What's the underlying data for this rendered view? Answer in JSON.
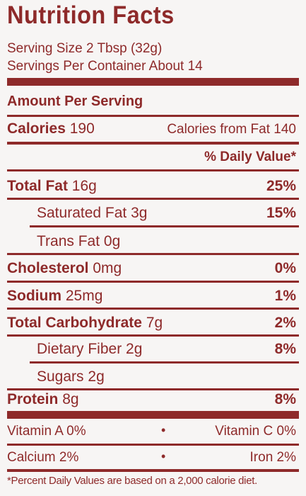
{
  "title": "Nutrition Facts",
  "serving_size": "Serving Size 2 Tbsp (32g)",
  "servings_per_container": "Servings Per Container About 14",
  "amount_per_serving": "Amount Per Serving",
  "calories": {
    "label": "Calories",
    "value": "190",
    "from_fat": "Calories from Fat 140"
  },
  "daily_value_header": "% Daily Value*",
  "nutrients": [
    {
      "label": "Total Fat",
      "amount": "16g",
      "dv": "25%"
    },
    {
      "label": "Saturated Fat",
      "amount": "3g",
      "dv": "15%"
    },
    {
      "label": "Trans Fat",
      "amount": "0g",
      "dv": ""
    },
    {
      "label": "Cholesterol",
      "amount": "0mg",
      "dv": "0%"
    },
    {
      "label": "Sodium",
      "amount": "25mg",
      "dv": "1%"
    },
    {
      "label": "Total Carbohydrate",
      "amount": "7g",
      "dv": "2%"
    },
    {
      "label": "Dietary Fiber",
      "amount": "2g",
      "dv": "8%"
    },
    {
      "label": "Sugars",
      "amount": "2g",
      "dv": ""
    },
    {
      "label": "Protein",
      "amount": "8g",
      "dv": "8%"
    }
  ],
  "vitamins": {
    "row1_left": "Vitamin A 0%",
    "row1_right": "Vitamin C 0%",
    "row2_left": "Calcium 2%",
    "row2_right": "Iron 2%",
    "separator": "•"
  },
  "footnote": "*Percent Daily Values are based on a 2,000 calorie diet.",
  "colors": {
    "ink": "#8e2a2a",
    "background": "#f7f5f4"
  }
}
